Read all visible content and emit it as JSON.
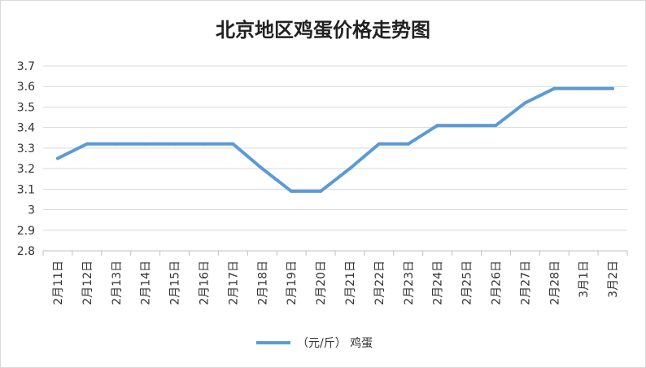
{
  "chart_data": {
    "type": "line",
    "title": "北京地区鸡蛋价格走势图",
    "categories": [
      "2月11日",
      "2月12日",
      "2月13日",
      "2月14日",
      "2月15日",
      "2月16日",
      "2月17日",
      "2月18日",
      "2月19日",
      "2月20日",
      "2月21日",
      "2月22日",
      "2月23日",
      "2月24日",
      "2月25日",
      "2月26日",
      "2月27日",
      "2月28日",
      "3月1日",
      "3月2日"
    ],
    "series": [
      {
        "name": "（元/斤） 鸡蛋",
        "color": "#5b9bd5",
        "values": [
          3.25,
          3.32,
          3.32,
          3.32,
          3.32,
          3.32,
          3.32,
          3.2,
          3.09,
          3.09,
          3.2,
          3.32,
          3.32,
          3.41,
          3.41,
          3.41,
          3.52,
          3.59,
          3.59,
          3.59
        ]
      }
    ],
    "ylim": [
      2.8,
      3.7
    ],
    "yticks": [
      "2.8",
      "2.9",
      "3",
      "3.1",
      "3.2",
      "3.3",
      "3.4",
      "3.5",
      "3.6",
      "3.7"
    ],
    "xlabel": "",
    "ylabel": "",
    "grid": true,
    "legend_position": "bottom"
  }
}
